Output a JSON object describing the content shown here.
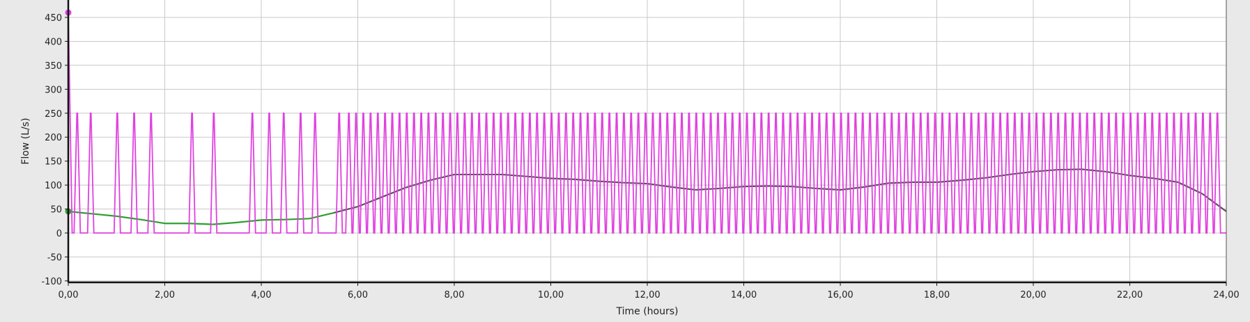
{
  "chart_data": {
    "type": "line",
    "title": "",
    "xlabel": "Time (hours)",
    "ylabel": "Flow (L/s)",
    "xlim": [
      0,
      24
    ],
    "ylim": [
      -100,
      500
    ],
    "grid": true,
    "x_ticks": [
      "0,00",
      "2,00",
      "4,00",
      "6,00",
      "8,00",
      "10,00",
      "12,00",
      "14,00",
      "16,00",
      "18,00",
      "20,00",
      "22,00",
      "24,00"
    ],
    "y_ticks": [
      "-100",
      "-50",
      "0",
      "50",
      "100",
      "150",
      "200",
      "250",
      "300",
      "350",
      "400",
      "450"
    ],
    "series": [
      {
        "color": "#e040e0",
        "initial_point": [
          0,
          460
        ],
        "pulse_peak": 250,
        "pulse_width_hours": 0.13,
        "pulse_starts_hours": [
          0.12,
          0.4,
          0.95,
          1.3,
          1.65,
          2.5,
          2.95,
          3.75,
          4.1,
          4.4,
          4.75,
          5.05,
          5.55,
          5.75,
          5.9,
          6.05,
          6.2,
          6.35,
          6.5,
          6.65,
          6.8,
          6.95,
          7.1,
          7.25,
          7.4,
          7.55,
          7.7,
          7.85,
          8.0,
          8.15,
          8.3,
          8.45,
          8.6,
          8.75,
          8.9,
          9.05,
          9.2,
          9.35,
          9.5,
          9.65,
          9.8,
          9.95,
          10.1,
          10.25,
          10.4,
          10.55,
          10.7,
          10.85,
          11.0,
          11.15,
          11.3,
          11.45,
          11.6,
          11.75,
          11.9,
          12.05,
          12.2,
          12.35,
          12.5,
          12.65,
          12.8,
          12.95,
          13.1,
          13.25,
          13.4,
          13.55,
          13.7,
          13.85,
          14.0,
          14.15,
          14.3,
          14.45,
          14.6,
          14.75,
          14.9,
          15.05,
          15.2,
          15.35,
          15.5,
          15.65,
          15.8,
          15.95,
          16.1,
          16.25,
          16.4,
          16.55,
          16.7,
          16.85,
          17.0,
          17.15,
          17.3,
          17.45,
          17.6,
          17.75,
          17.9,
          18.05,
          18.2,
          18.35,
          18.5,
          18.65,
          18.8,
          18.95,
          19.1,
          19.25,
          19.4,
          19.55,
          19.7,
          19.85,
          20.0,
          20.15,
          20.3,
          20.45,
          20.6,
          20.75,
          20.9,
          21.05,
          21.2,
          21.35,
          21.5,
          21.65,
          21.8,
          21.95,
          22.1,
          22.25,
          22.4,
          22.55,
          22.7,
          22.85,
          23.0,
          23.15,
          23.3,
          23.45,
          23.6,
          23.75
        ]
      },
      {
        "color_start": "#2e9e2e",
        "color_end": "#555555",
        "points": [
          [
            0,
            45
          ],
          [
            0.5,
            40
          ],
          [
            1,
            35
          ],
          [
            1.5,
            28
          ],
          [
            2,
            20
          ],
          [
            2.5,
            20
          ],
          [
            3,
            18
          ],
          [
            3.5,
            22
          ],
          [
            4,
            27
          ],
          [
            4.5,
            28
          ],
          [
            5,
            30
          ],
          [
            5.5,
            42
          ],
          [
            6,
            55
          ],
          [
            6.5,
            75
          ],
          [
            7,
            95
          ],
          [
            7.5,
            110
          ],
          [
            8,
            122
          ],
          [
            8.5,
            122
          ],
          [
            9,
            122
          ],
          [
            9.5,
            118
          ],
          [
            10,
            114
          ],
          [
            10.5,
            112
          ],
          [
            11,
            108
          ],
          [
            11.5,
            105
          ],
          [
            12,
            103
          ],
          [
            12.5,
            96
          ],
          [
            13,
            90
          ],
          [
            13.5,
            93
          ],
          [
            14,
            97
          ],
          [
            14.5,
            98
          ],
          [
            15,
            97
          ],
          [
            15.5,
            93
          ],
          [
            16,
            90
          ],
          [
            16.5,
            96
          ],
          [
            17,
            104
          ],
          [
            17.5,
            106
          ],
          [
            18,
            106
          ],
          [
            18.5,
            110
          ],
          [
            19,
            115
          ],
          [
            19.5,
            122
          ],
          [
            20,
            128
          ],
          [
            20.5,
            132
          ],
          [
            21,
            133
          ],
          [
            21.5,
            128
          ],
          [
            22,
            120
          ],
          [
            22.5,
            114
          ],
          [
            23,
            106
          ],
          [
            23.5,
            82
          ],
          [
            24,
            45
          ]
        ],
        "initial_marker": [
          0,
          45
        ]
      }
    ]
  }
}
